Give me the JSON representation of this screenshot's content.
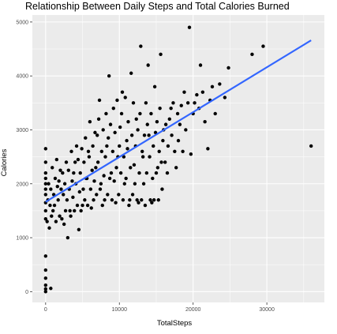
{
  "chart_data": {
    "type": "scatter",
    "title": "Relationship Between Daily Steps and Total Calories Burned",
    "xlabel": "TotalSteps",
    "ylabel": "Calories",
    "xlim": [
      -1800,
      37800
    ],
    "ylim": [
      -200,
      5130
    ],
    "x_ticks": [
      0,
      10000,
      20000,
      30000
    ],
    "y_ticks": [
      0,
      1000,
      2000,
      3000,
      4000,
      5000
    ],
    "x_tick_labels": [
      "0",
      "10000",
      "20000",
      "30000"
    ],
    "y_tick_labels": [
      "0",
      "1000",
      "2000",
      "3000",
      "4000",
      "5000"
    ],
    "grid": true,
    "legend": "none",
    "colors": {
      "panel": "#ebebeb",
      "grid_major": "#ffffff",
      "points": "#000000",
      "trend_line": "#3366ff"
    },
    "trend_line": {
      "x": [
        0,
        36000
      ],
      "y": [
        1665,
        4660
      ]
    },
    "points": [
      [
        0,
        0
      ],
      [
        0,
        50
      ],
      [
        0,
        120
      ],
      [
        0,
        250
      ],
      [
        0,
        400
      ],
      [
        0,
        660
      ],
      [
        700,
        60
      ],
      [
        0,
        1350
      ],
      [
        0,
        1650
      ],
      [
        0,
        2000
      ],
      [
        0,
        2200
      ],
      [
        0,
        2650
      ],
      [
        500,
        1180
      ],
      [
        800,
        1400
      ],
      [
        1200,
        1600
      ],
      [
        1600,
        1950
      ],
      [
        2000,
        2250
      ],
      [
        2500,
        1250
      ],
      [
        3000,
        1000
      ],
      [
        3300,
        1500
      ],
      [
        3600,
        2050
      ],
      [
        4000,
        2400
      ],
      [
        4200,
        2700
      ],
      [
        4500,
        1150
      ],
      [
        5000,
        1600
      ],
      [
        5500,
        2100
      ],
      [
        5800,
        2600
      ],
      [
        6000,
        3150
      ],
      [
        6200,
        1550
      ],
      [
        6800,
        2300
      ],
      [
        7000,
        2900
      ],
      [
        7300,
        3550
      ],
      [
        7500,
        2000
      ],
      [
        8000,
        1700
      ],
      [
        8300,
        2700
      ],
      [
        8600,
        4000
      ],
      [
        8900,
        2200
      ],
      [
        9200,
        3400
      ],
      [
        9500,
        1650
      ],
      [
        9800,
        2500
      ],
      [
        10100,
        3050
      ],
      [
        10400,
        3700
      ],
      [
        10700,
        2000
      ],
      [
        11000,
        2800
      ],
      [
        11300,
        1600
      ],
      [
        11600,
        4050
      ],
      [
        12000,
        2350
      ],
      [
        12300,
        3200
      ],
      [
        12600,
        1650
      ],
      [
        12900,
        4550
      ],
      [
        13200,
        2500
      ],
      [
        13600,
        3500
      ],
      [
        14000,
        2900
      ],
      [
        14400,
        1650
      ],
      [
        14800,
        3800
      ],
      [
        15200,
        2300
      ],
      [
        15600,
        4400
      ],
      [
        16000,
        3000
      ],
      [
        16500,
        2200
      ],
      [
        17000,
        3400
      ],
      [
        17500,
        2600
      ],
      [
        18200,
        3100
      ],
      [
        18800,
        3700
      ],
      [
        19500,
        4900
      ],
      [
        20000,
        3300
      ],
      [
        20500,
        3650
      ],
      [
        21000,
        4200
      ],
      [
        21600,
        3150
      ],
      [
        22300,
        3550
      ],
      [
        23000,
        3300
      ],
      [
        23600,
        3850
      ],
      [
        24300,
        3600
      ],
      [
        24800,
        4150
      ],
      [
        28000,
        4400
      ],
      [
        29500,
        4550
      ],
      [
        36000,
        2700
      ],
      [
        0,
        1500
      ],
      [
        0,
        1800
      ],
      [
        0,
        1900
      ],
      [
        0,
        2100
      ],
      [
        0,
        2400
      ],
      [
        200,
        1300
      ],
      [
        300,
        1700
      ],
      [
        400,
        2000
      ],
      [
        600,
        1600
      ],
      [
        700,
        1900
      ],
      [
        900,
        2300
      ],
      [
        1000,
        1500
      ],
      [
        1100,
        1800
      ],
      [
        1300,
        2100
      ],
      [
        1400,
        1300
      ],
      [
        1500,
        2450
      ],
      [
        1700,
        1700
      ],
      [
        1800,
        2050
      ],
      [
        1900,
        1400
      ],
      [
        2100,
        1900
      ],
      [
        2200,
        1350
      ],
      [
        2300,
        2200
      ],
      [
        2400,
        1800
      ],
      [
        2600,
        2000
      ],
      [
        2700,
        1500
      ],
      [
        2800,
        2400
      ],
      [
        2900,
        1700
      ],
      [
        3100,
        2250
      ],
      [
        3200,
        1900
      ],
      [
        3400,
        1400
      ],
      [
        3500,
        2600
      ],
      [
        3700,
        1750
      ],
      [
        3800,
        2200
      ],
      [
        3900,
        1500
      ],
      [
        4100,
        2000
      ],
      [
        4300,
        1600
      ],
      [
        4400,
        2450
      ],
      [
        4600,
        1850
      ],
      [
        4700,
        2200
      ],
      [
        4800,
        1500
      ],
      [
        4900,
        2650
      ],
      [
        5100,
        1900
      ],
      [
        5200,
        2400
      ],
      [
        5300,
        1700
      ],
      [
        5400,
        2850
      ],
      [
        5600,
        2100
      ],
      [
        5700,
        1600
      ],
      [
        5900,
        2500
      ],
      [
        6100,
        1900
      ],
      [
        6300,
        2250
      ],
      [
        6400,
        2700
      ],
      [
        6500,
        1700
      ],
      [
        6600,
        2050
      ],
      [
        6700,
        2950
      ],
      [
        6900,
        1800
      ],
      [
        7100,
        2400
      ],
      [
        7200,
        3200
      ],
      [
        7400,
        1900
      ],
      [
        7600,
        2600
      ],
      [
        7700,
        1600
      ],
      [
        7800,
        3000
      ],
      [
        7900,
        2150
      ],
      [
        8100,
        2500
      ],
      [
        8200,
        3300
      ],
      [
        8400,
        1800
      ],
      [
        8500,
        2850
      ],
      [
        8700,
        2100
      ],
      [
        8800,
        3100
      ],
      [
        9000,
        1700
      ],
      [
        9100,
        2600
      ],
      [
        9300,
        2050
      ],
      [
        9400,
        2950
      ],
      [
        9600,
        2300
      ],
      [
        9700,
        3550
      ],
      [
        9900,
        1800
      ],
      [
        10000,
        2700
      ],
      [
        10200,
        2200
      ],
      [
        10300,
        3300
      ],
      [
        10500,
        1700
      ],
      [
        10600,
        2500
      ],
      [
        10800,
        3600
      ],
      [
        10900,
        2100
      ],
      [
        11100,
        2650
      ],
      [
        11200,
        3150
      ],
      [
        11400,
        1700
      ],
      [
        11500,
        2300
      ],
      [
        11700,
        2900
      ],
      [
        11800,
        1800
      ],
      [
        11900,
        3500
      ],
      [
        12100,
        2000
      ],
      [
        12200,
        2700
      ],
      [
        12400,
        1700
      ],
      [
        12500,
        3000
      ],
      [
        12700,
        2200
      ],
      [
        12800,
        3300
      ],
      [
        13000,
        1700
      ],
      [
        13100,
        2600
      ],
      [
        13300,
        2000
      ],
      [
        13400,
        2900
      ],
      [
        13500,
        1600
      ],
      [
        13700,
        2200
      ],
      [
        13800,
        3100
      ],
      [
        13900,
        4200
      ],
      [
        14100,
        2500
      ],
      [
        14200,
        1700
      ],
      [
        14300,
        3300
      ],
      [
        14500,
        2100
      ],
      [
        14600,
        2700
      ],
      [
        14700,
        1700
      ],
      [
        14900,
        2950
      ],
      [
        15000,
        2200
      ],
      [
        15100,
        3150
      ],
      [
        15300,
        1700
      ],
      [
        15400,
        2600
      ],
      [
        15500,
        3400
      ],
      [
        15700,
        2400
      ],
      [
        15800,
        1900
      ],
      [
        15900,
        2800
      ],
      [
        16200,
        2400
      ],
      [
        16300,
        3100
      ],
      [
        16600,
        2700
      ],
      [
        16800,
        3200
      ],
      [
        17100,
        2900
      ],
      [
        17300,
        3500
      ],
      [
        17700,
        2300
      ],
      [
        17900,
        3300
      ],
      [
        18000,
        2800
      ],
      [
        18400,
        3450
      ],
      [
        18600,
        2600
      ],
      [
        19000,
        3000
      ],
      [
        19300,
        3500
      ],
      [
        19700,
        2550
      ],
      [
        20200,
        3500
      ],
      [
        20800,
        3400
      ],
      [
        21300,
        3700
      ],
      [
        22000,
        2650
      ],
      [
        22600,
        3800
      ]
    ]
  }
}
